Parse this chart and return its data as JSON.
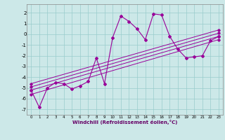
{
  "title": "",
  "xlabel": "Windchill (Refroidissement éolien,°C)",
  "bg_color": "#cce8e8",
  "grid_color": "#99cccc",
  "line_color": "#990099",
  "xlim": [
    -0.5,
    23.5
  ],
  "ylim": [
    -7.5,
    2.8
  ],
  "yticks": [
    -7,
    -6,
    -5,
    -4,
    -3,
    -2,
    -1,
    0,
    1,
    2
  ],
  "xticks": [
    0,
    1,
    2,
    3,
    4,
    5,
    6,
    7,
    8,
    9,
    10,
    11,
    12,
    13,
    14,
    15,
    16,
    17,
    18,
    19,
    20,
    21,
    22,
    23
  ],
  "series1_x": [
    0,
    1,
    2,
    3,
    4,
    5,
    6,
    7,
    8,
    9,
    10,
    11,
    12,
    13,
    14,
    15,
    16,
    17,
    18,
    19,
    20,
    21,
    22,
    23
  ],
  "series1_y": [
    -5.2,
    -6.8,
    -5.0,
    -4.5,
    -4.6,
    -5.1,
    -4.8,
    -4.4,
    -2.2,
    -4.6,
    -0.3,
    1.7,
    1.2,
    0.5,
    -0.5,
    1.9,
    1.8,
    -0.2,
    -1.4,
    -2.2,
    -2.1,
    -2.0,
    -0.6,
    -0.2
  ],
  "trend_lines": [
    {
      "x": [
        0,
        23
      ],
      "y": [
        -5.6,
        -0.5
      ]
    },
    {
      "x": [
        0,
        23
      ],
      "y": [
        -5.2,
        -0.2
      ]
    },
    {
      "x": [
        0,
        23
      ],
      "y": [
        -4.9,
        0.1
      ]
    },
    {
      "x": [
        0,
        23
      ],
      "y": [
        -4.6,
        0.4
      ]
    }
  ]
}
